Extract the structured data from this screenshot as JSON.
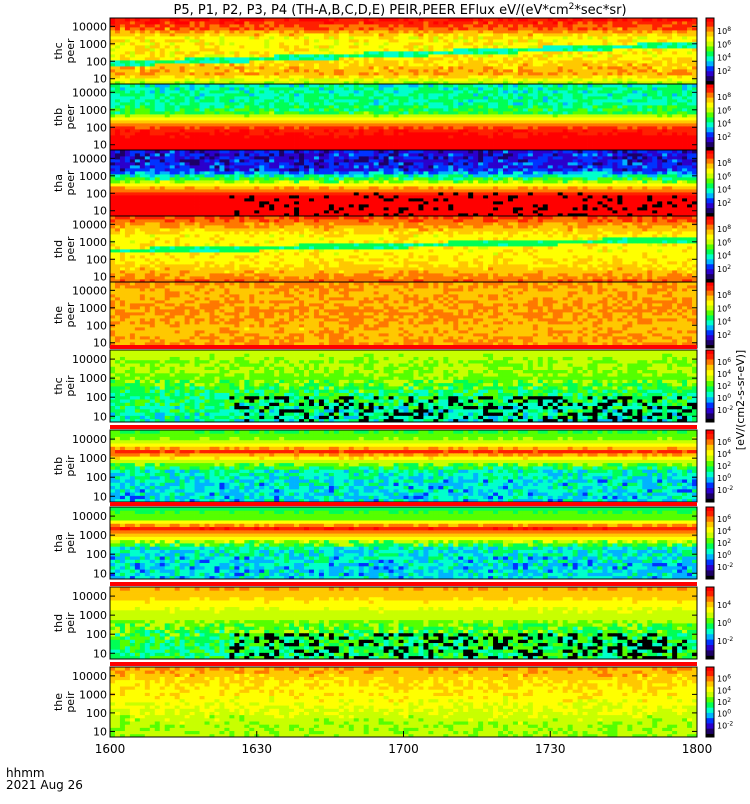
{
  "title": {
    "prefix": "P5, P1, P2, P3, P4 (TH-A,B,C,D,E) PEIR,PEER EFlux eV/(eV*cm",
    "sup": "2",
    "suffix": "*sec*sr)"
  },
  "footer": {
    "time_label": "hhmm",
    "date_label": "2021 Aug 26"
  },
  "colorbar_label_text": "[eV/(cm2-s-sr-eV)]",
  "colors": {
    "background": "#ffffff",
    "frame": "#000000",
    "palette": [
      "#000000",
      "#1c0066",
      "#2b00cc",
      "#0033ff",
      "#00b3ff",
      "#00ffcc",
      "#00ff55",
      "#55ff00",
      "#c8ff00",
      "#ffff00",
      "#ffc800",
      "#ff7800",
      "#ff2000",
      "#ff0000"
    ]
  },
  "chart_data": {
    "type": "heatmap",
    "x_axis": {
      "ticks": [
        "1600",
        "1630",
        "1700",
        "1730",
        "1800"
      ],
      "range": [
        "1600",
        "1800"
      ]
    },
    "y_axis": {
      "scale": "log",
      "range": [
        5,
        30000
      ],
      "unit": "eV",
      "ticks_peer": [
        "10",
        "100",
        "1000",
        "10000"
      ],
      "ticks_peir": [
        "10",
        "100",
        "1000",
        "10000"
      ]
    },
    "panels": [
      {
        "sat": "thc",
        "species": "peer",
        "colorbar_ticks": [
          "10^2",
          "10^4",
          "10^6",
          "10^8"
        ],
        "base": [
          0.6,
          0.8,
          0.76,
          0.7,
          0.7,
          0.7,
          0.86,
          0.95
        ],
        "noise": 0.06,
        "noise_lo": 0,
        "noise_hi": 1,
        "dark": 0,
        "line": {
          "y0": 70,
          "y1": 1000,
          "v": 0.42
        }
      },
      {
        "sat": "thb",
        "species": "peer",
        "colorbar_ticks": [
          "10^2",
          "10^4",
          "10^6",
          "10^8"
        ],
        "base": [
          1.0,
          0.99,
          0.95,
          0.78,
          0.5,
          0.42,
          0.42,
          0.4
        ],
        "noise": 0.08,
        "noise_lo": 0.55,
        "noise_hi": 1,
        "dark": 0
      },
      {
        "sat": "tha",
        "species": "peer",
        "colorbar_ticks": [
          "10^2",
          "10^4",
          "10^6",
          "10^8"
        ],
        "base": [
          1.0,
          1.0,
          0.99,
          0.8,
          0.48,
          0.2,
          0.18,
          0.18
        ],
        "noise": 0.1,
        "noise_lo": 0.5,
        "noise_hi": 1,
        "dark": 0.15
      },
      {
        "sat": "thd",
        "species": "peer",
        "colorbar_ticks": [
          "10^2",
          "10^4",
          "10^6",
          "10^8"
        ],
        "base": [
          0.86,
          0.78,
          0.72,
          0.7,
          0.7,
          0.7,
          0.8,
          0.9
        ],
        "noise": 0.05,
        "noise_lo": 0,
        "noise_hi": 1,
        "dark": 0,
        "line": {
          "y0": 300,
          "y1": 1500,
          "v": 0.45
        }
      },
      {
        "sat": "the",
        "species": "peer",
        "colorbar_ticks": [
          "10^2",
          "10^4",
          "10^6",
          "10^8"
        ],
        "base": [
          0.82,
          0.8,
          0.78,
          0.8,
          0.82,
          0.8,
          0.78,
          0.82
        ],
        "noise": 0.05,
        "noise_lo": 0,
        "noise_hi": 1,
        "dark": 0
      },
      {
        "sat": "thc",
        "species": "peir",
        "colorbar_ticks": [
          "10^-2",
          "10^0",
          "10^2",
          "10^4",
          "10^6"
        ],
        "base": [
          0.4,
          0.42,
          0.45,
          0.48,
          0.55,
          0.58,
          0.58,
          0.6
        ],
        "noise": 0.1,
        "noise_lo": 0,
        "noise_hi": 0.6,
        "dark": 0.3
      },
      {
        "sat": "thb",
        "species": "peir",
        "colorbar_ticks": [
          "10^-2",
          "10^0",
          "10^2",
          "10^4",
          "10^6"
        ],
        "base": [
          0.35,
          0.35,
          0.36,
          0.4,
          0.62,
          0.9,
          0.6,
          0.5
        ],
        "noise": 0.1,
        "noise_lo": 0,
        "noise_hi": 0.55,
        "dark": 0
      },
      {
        "sat": "tha",
        "species": "peir",
        "colorbar_ticks": [
          "10^-2",
          "10^0",
          "10^2",
          "10^4",
          "10^6"
        ],
        "base": [
          0.35,
          0.35,
          0.36,
          0.4,
          0.68,
          0.95,
          0.55,
          0.48
        ],
        "noise": 0.1,
        "noise_lo": 0,
        "noise_hi": 0.55,
        "dark": 0
      },
      {
        "sat": "thd",
        "species": "peir",
        "colorbar_ticks": [
          "10^-2",
          "10^0",
          "10^4"
        ],
        "base": [
          0.45,
          0.45,
          0.48,
          0.52,
          0.6,
          0.66,
          0.74,
          0.8
        ],
        "noise": 0.1,
        "noise_lo": 0,
        "noise_hi": 0.5,
        "dark": 0.3
      },
      {
        "sat": "the",
        "species": "peir",
        "colorbar_ticks": [
          "10^-2",
          "10^0",
          "10^2",
          "10^4",
          "10^6"
        ],
        "base": [
          0.6,
          0.6,
          0.62,
          0.66,
          0.7,
          0.72,
          0.75,
          0.8
        ],
        "noise": 0.05,
        "noise_lo": 0,
        "noise_hi": 1,
        "dark": 0
      }
    ]
  }
}
